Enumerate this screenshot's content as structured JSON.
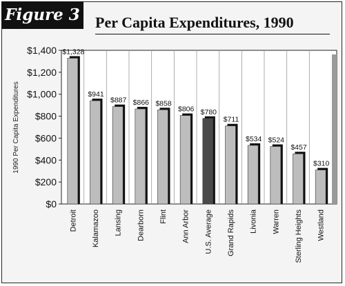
{
  "figure_label": "Figure 3",
  "chart_data": {
    "type": "bar",
    "title": "Per Capita Expenditures, 1990",
    "xlabel": "",
    "ylabel": "1990 Per Capita Expenditures",
    "ylim": [
      0,
      1400
    ],
    "yticks": [
      {
        "value": 0,
        "label": "$0"
      },
      {
        "value": 200,
        "label": "$200"
      },
      {
        "value": 400,
        "label": "$400"
      },
      {
        "value": 600,
        "label": "$600"
      },
      {
        "value": 800,
        "label": "$800"
      },
      {
        "value": 1000,
        "label": "$1,000"
      },
      {
        "value": 1200,
        "label": "$1,200"
      },
      {
        "value": 1400,
        "label": "$1,400"
      }
    ],
    "categories": [
      "Detroit",
      "Kalamazoo",
      "Lansing",
      "Dearborn",
      "Flint",
      "Ann Arbor",
      "U.S. Average",
      "Grand Rapids",
      "Livonia",
      "Warren",
      "Sterling Heights",
      "Westland"
    ],
    "values": [
      1328,
      941,
      887,
      866,
      858,
      806,
      780,
      711,
      534,
      524,
      457,
      310
    ],
    "value_labels": [
      "$1,328",
      "$941",
      "$887",
      "$866",
      "$858",
      "$806",
      "$780",
      "$711",
      "$534",
      "$524",
      "$457",
      "$310"
    ],
    "highlight_category": "U.S. Average",
    "grid": "vertical",
    "colors": {
      "bar": "#bdbdbd",
      "highlight_bar": "#4a4a4a",
      "bar_shadow": "#111111",
      "plot_bg": "#ffffff"
    }
  }
}
